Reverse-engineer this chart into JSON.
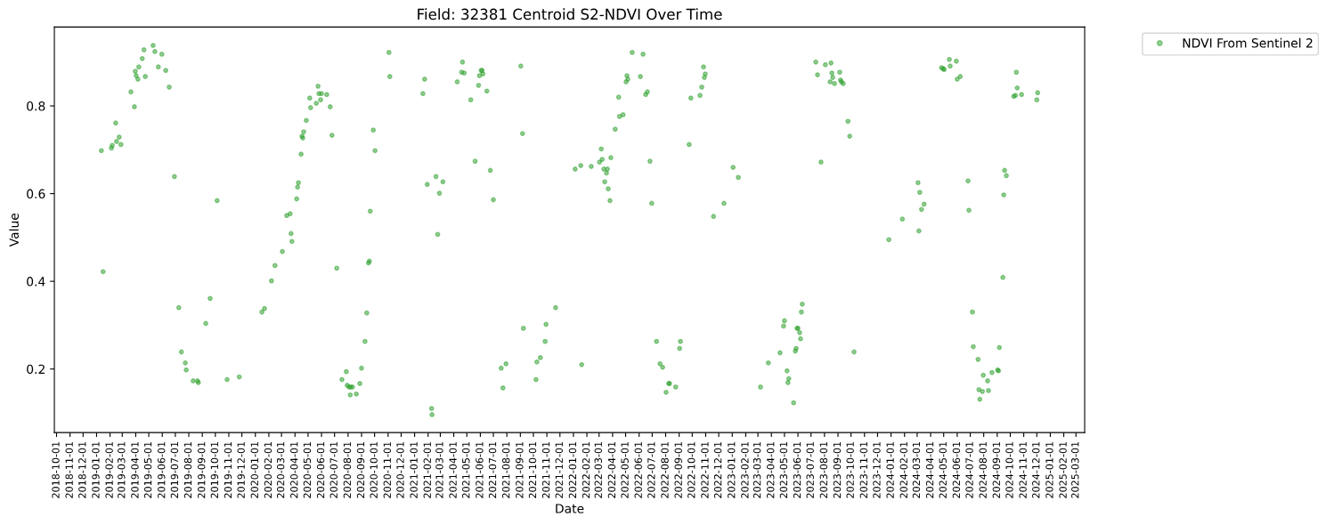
{
  "chart_data": {
    "type": "scatter",
    "title": "Field: 32381 Centroid S2-NDVI Over Time",
    "xlabel": "Date",
    "ylabel": "Value",
    "x": [
      "2019-01-12",
      "2019-01-16",
      "2019-02-04",
      "2019-02-06",
      "2019-02-14",
      "2019-02-16",
      "2019-02-22",
      "2019-02-26",
      "2019-03-21",
      "2019-03-29",
      "2019-03-31",
      "2019-04-02",
      "2019-04-06",
      "2019-04-08",
      "2019-04-16",
      "2019-04-20",
      "2019-04-23",
      "2019-05-11",
      "2019-05-15",
      "2019-05-23",
      "2019-05-31",
      "2019-06-09",
      "2019-06-17",
      "2019-06-29",
      "2019-07-09",
      "2019-07-15",
      "2019-07-24",
      "2019-07-26",
      "2019-08-11",
      "2019-08-21",
      "2019-08-23",
      "2019-09-09",
      "2019-09-19",
      "2019-10-05",
      "2019-10-28",
      "2019-11-25",
      "2020-01-16",
      "2020-01-22",
      "2020-02-07",
      "2020-02-15",
      "2020-03-03",
      "2020-03-13",
      "2020-03-21",
      "2020-03-23",
      "2020-03-25",
      "2020-04-05",
      "2020-04-07",
      "2020-04-09",
      "2020-04-15",
      "2020-04-17",
      "2020-04-19",
      "2020-04-21",
      "2020-04-27",
      "2020-05-05",
      "2020-05-07",
      "2020-05-20",
      "2020-05-24",
      "2020-05-26",
      "2020-05-30",
      "2020-06-01",
      "2020-06-13",
      "2020-06-21",
      "2020-06-25",
      "2020-07-06",
      "2020-07-18",
      "2020-07-28",
      "2020-07-30",
      "2020-08-03",
      "2020-08-07",
      "2020-08-11",
      "2020-08-06",
      "2020-08-20",
      "2020-08-28",
      "2020-09-01",
      "2020-09-09",
      "2020-09-13",
      "2020-09-17",
      "2020-09-19",
      "2020-09-21",
      "2020-09-28",
      "2020-10-02",
      "2020-11-03",
      "2020-11-05",
      "2021-01-20",
      "2021-01-24",
      "2021-01-30",
      "2021-02-09",
      "2021-02-10",
      "2021-02-19",
      "2021-02-23",
      "2021-02-27",
      "2021-03-07",
      "2021-04-09",
      "2021-04-19",
      "2021-04-21",
      "2021-04-25",
      "2021-05-10",
      "2021-05-20",
      "2021-05-28",
      "2021-05-30",
      "2021-06-03",
      "2021-06-05",
      "2021-06-07",
      "2021-06-16",
      "2021-06-24",
      "2021-07-01",
      "2021-07-19",
      "2021-07-23",
      "2021-07-30",
      "2021-09-02",
      "2021-09-06",
      "2021-09-08",
      "2021-10-07",
      "2021-10-09",
      "2021-10-17",
      "2021-10-28",
      "2021-10-30",
      "2021-11-21",
      "2022-01-05",
      "2022-01-18",
      "2022-01-20",
      "2022-02-11",
      "2022-03-02",
      "2022-03-06",
      "2022-03-08",
      "2022-03-12",
      "2022-03-20",
      "2022-03-18",
      "2022-03-14",
      "2022-03-22",
      "2022-03-26",
      "2022-03-28",
      "2022-04-07",
      "2022-04-15",
      "2022-04-17",
      "2022-04-25",
      "2022-05-02",
      "2022-05-04",
      "2022-05-06",
      "2022-05-16",
      "2022-06-04",
      "2022-06-10",
      "2022-06-16",
      "2022-06-20",
      "2022-06-26",
      "2022-06-30",
      "2022-07-11",
      "2022-07-19",
      "2022-07-25",
      "2022-08-02",
      "2022-08-08",
      "2022-08-10",
      "2022-08-24",
      "2022-09-02",
      "2022-09-04",
      "2022-09-24",
      "2022-09-28",
      "2022-10-19",
      "2022-10-23",
      "2022-10-27",
      "2022-10-29",
      "2022-10-31",
      "2022-11-19",
      "2022-12-13",
      "2023-01-03",
      "2023-01-15",
      "2023-03-07",
      "2023-03-25",
      "2023-04-21",
      "2023-04-29",
      "2023-05-01",
      "2023-05-07",
      "2023-05-11",
      "2023-05-09",
      "2023-05-22",
      "2023-05-26",
      "2023-05-28",
      "2023-05-30",
      "2023-06-01",
      "2023-06-05",
      "2023-06-07",
      "2023-06-09",
      "2023-06-11",
      "2023-07-12",
      "2023-07-16",
      "2023-07-24",
      "2023-08-03",
      "2023-08-14",
      "2023-08-16",
      "2023-08-18",
      "2023-08-20",
      "2023-08-24",
      "2023-09-05",
      "2023-09-07",
      "2023-09-09",
      "2023-09-13",
      "2023-09-24",
      "2023-09-28",
      "2023-10-08",
      "2023-12-27",
      "2024-01-27",
      "2024-03-03",
      "2024-03-05",
      "2024-03-07",
      "2024-03-11",
      "2024-03-17",
      "2024-04-26",
      "2024-04-30",
      "2024-05-02",
      "2024-05-14",
      "2024-05-16",
      "2024-05-30",
      "2024-06-01",
      "2024-06-08",
      "2024-06-26",
      "2024-06-28",
      "2024-07-06",
      "2024-07-08",
      "2024-07-19",
      "2024-07-21",
      "2024-07-23",
      "2024-07-29",
      "2024-07-31",
      "2024-08-10",
      "2024-08-12",
      "2024-08-20",
      "2024-09-02",
      "2024-09-04",
      "2024-09-06",
      "2024-09-14",
      "2024-09-16",
      "2024-09-18",
      "2024-09-22",
      "2024-10-09",
      "2024-10-13",
      "2024-10-15",
      "2024-10-17",
      "2024-10-27",
      "2024-12-01",
      "2024-12-03"
    ],
    "series": [
      {
        "name": "NDVI From Sentinel 2",
        "color": "#2ca02c",
        "values": [
          0.698,
          0.422,
          0.704,
          0.71,
          0.761,
          0.719,
          0.729,
          0.712,
          0.832,
          0.798,
          0.879,
          0.869,
          0.861,
          0.889,
          0.908,
          0.928,
          0.867,
          0.938,
          0.924,
          0.889,
          0.918,
          0.881,
          0.843,
          0.639,
          0.34,
          0.239,
          0.214,
          0.198,
          0.173,
          0.173,
          0.169,
          0.304,
          0.361,
          0.584,
          0.176,
          0.182,
          0.33,
          0.338,
          0.401,
          0.436,
          0.468,
          0.55,
          0.554,
          0.509,
          0.491,
          0.588,
          0.615,
          0.625,
          0.69,
          0.731,
          0.727,
          0.741,
          0.767,
          0.818,
          0.796,
          0.806,
          0.845,
          0.828,
          0.814,
          0.828,
          0.826,
          0.798,
          0.733,
          0.43,
          0.176,
          0.194,
          0.163,
          0.159,
          0.159,
          0.159,
          0.141,
          0.143,
          0.167,
          0.202,
          0.263,
          0.328,
          0.442,
          0.446,
          0.56,
          0.745,
          0.698,
          0.922,
          0.867,
          0.828,
          0.861,
          0.621,
          0.11,
          0.096,
          0.639,
          0.507,
          0.601,
          0.627,
          0.855,
          0.877,
          0.9,
          0.875,
          0.814,
          0.674,
          0.847,
          0.869,
          0.881,
          0.881,
          0.873,
          0.834,
          0.653,
          0.586,
          0.202,
          0.157,
          0.212,
          0.891,
          0.737,
          0.293,
          0.176,
          0.216,
          0.226,
          0.263,
          0.302,
          0.34,
          0.656,
          0.664,
          0.21,
          0.662,
          0.672,
          0.702,
          0.678,
          0.656,
          0.656,
          0.647,
          0.627,
          0.611,
          0.584,
          0.682,
          0.747,
          0.82,
          0.776,
          0.78,
          0.855,
          0.869,
          0.861,
          0.922,
          0.867,
          0.918,
          0.826,
          0.832,
          0.674,
          0.578,
          0.263,
          0.212,
          0.204,
          0.147,
          0.167,
          0.167,
          0.159,
          0.247,
          0.263,
          0.712,
          0.818,
          0.824,
          0.843,
          0.889,
          0.865,
          0.873,
          0.548,
          0.578,
          0.66,
          0.637,
          0.159,
          0.214,
          0.237,
          0.298,
          0.31,
          0.196,
          0.178,
          0.169,
          0.123,
          0.241,
          0.247,
          0.293,
          0.293,
          0.283,
          0.269,
          0.33,
          0.348,
          0.9,
          0.871,
          0.672,
          0.894,
          0.855,
          0.898,
          0.875,
          0.865,
          0.851,
          0.877,
          0.859,
          0.855,
          0.851,
          0.765,
          0.731,
          0.239,
          0.495,
          0.542,
          0.625,
          0.515,
          0.603,
          0.564,
          0.576,
          0.887,
          0.885,
          0.883,
          0.906,
          0.891,
          0.902,
          0.861,
          0.867,
          0.629,
          0.562,
          0.33,
          0.251,
          0.222,
          0.153,
          0.131,
          0.149,
          0.186,
          0.173,
          0.151,
          0.192,
          0.198,
          0.196,
          0.249,
          0.409,
          0.597,
          0.653,
          0.641,
          0.822,
          0.824,
          0.877,
          0.841,
          0.826,
          0.814,
          0.83
        ]
      }
    ],
    "xlim": [
      "2018-09-26",
      "2025-03-21"
    ],
    "ylim": [
      0.055,
      0.98
    ],
    "xticks": [
      "2018-10-01",
      "2018-11-01",
      "2018-12-01",
      "2019-01-01",
      "2019-02-01",
      "2019-03-01",
      "2019-04-01",
      "2019-05-01",
      "2019-06-01",
      "2019-07-01",
      "2019-08-01",
      "2019-09-01",
      "2019-10-01",
      "2019-11-01",
      "2019-12-01",
      "2020-01-01",
      "2020-02-01",
      "2020-03-01",
      "2020-04-01",
      "2020-05-01",
      "2020-06-01",
      "2020-07-01",
      "2020-08-01",
      "2020-09-01",
      "2020-10-01",
      "2020-11-01",
      "2020-12-01",
      "2021-01-01",
      "2021-02-01",
      "2021-03-01",
      "2021-04-01",
      "2021-05-01",
      "2021-06-01",
      "2021-07-01",
      "2021-08-01",
      "2021-09-01",
      "2021-10-01",
      "2021-11-01",
      "2021-12-01",
      "2022-01-01",
      "2022-02-01",
      "2022-03-01",
      "2022-04-01",
      "2022-05-01",
      "2022-06-01",
      "2022-07-01",
      "2022-08-01",
      "2022-09-01",
      "2022-10-01",
      "2022-11-01",
      "2022-12-01",
      "2023-01-01",
      "2023-02-01",
      "2023-03-01",
      "2023-04-01",
      "2023-05-01",
      "2023-06-01",
      "2023-07-01",
      "2023-08-01",
      "2023-09-01",
      "2023-10-01",
      "2023-11-01",
      "2023-12-01",
      "2024-01-01",
      "2024-02-01",
      "2024-03-01",
      "2024-04-01",
      "2024-05-01",
      "2024-06-01",
      "2024-07-01",
      "2024-08-01",
      "2024-09-01",
      "2024-10-01",
      "2024-11-01",
      "2024-12-01",
      "2025-01-01",
      "2025-02-01",
      "2025-03-01"
    ],
    "yticks": [
      0.2,
      0.4,
      0.6,
      0.8
    ],
    "marker": "circle",
    "legend": "top right"
  }
}
